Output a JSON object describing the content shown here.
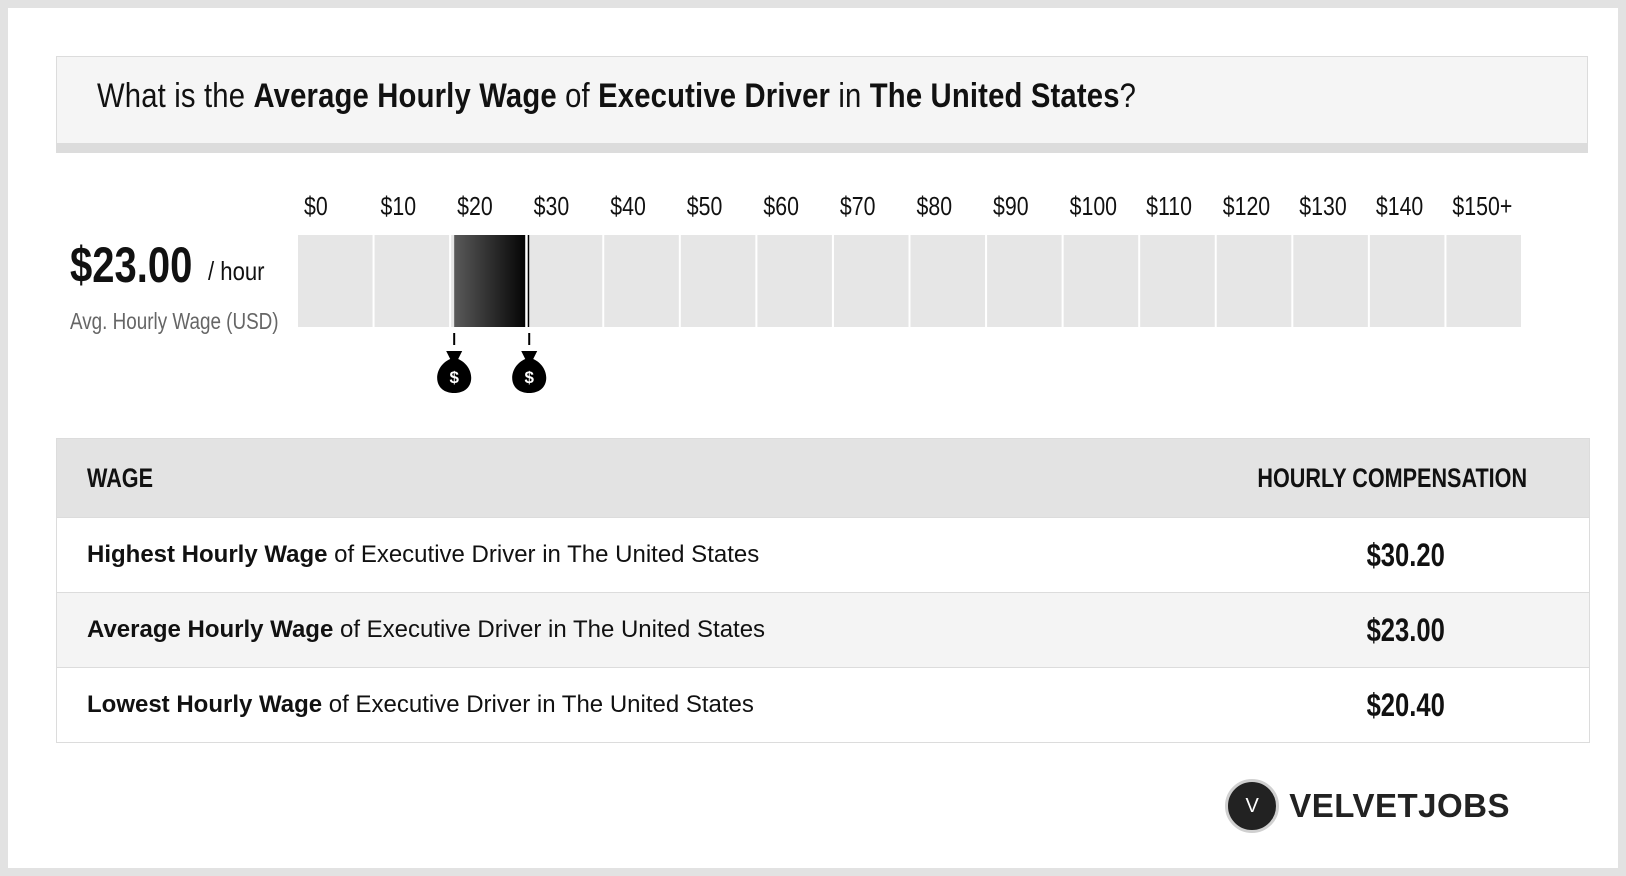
{
  "header": {
    "parts": [
      {
        "text": "What is the ",
        "bold": false
      },
      {
        "text": "Average Hourly Wage",
        "bold": true
      },
      {
        "text": " of ",
        "bold": false
      },
      {
        "text": "Executive Driver",
        "bold": true
      },
      {
        "text": " in ",
        "bold": false
      },
      {
        "text": "The United States",
        "bold": true
      },
      {
        "text": "?",
        "bold": false
      }
    ]
  },
  "summary": {
    "value": "$23.00",
    "unit": "/ hour",
    "label": "Avg. Hourly Wage (USD)"
  },
  "chart_data": {
    "type": "bar",
    "orientation": "horizontal-range",
    "tick_labels": [
      "$0",
      "$10",
      "$20",
      "$30",
      "$40",
      "$50",
      "$60",
      "$70",
      "$80",
      "$90",
      "$100",
      "$110",
      "$120",
      "$130",
      "$140",
      "$150+"
    ],
    "xlim": [
      0,
      150
    ],
    "range": {
      "low": 20.4,
      "high": 30.2
    },
    "average": 23.0,
    "markers": [
      20.4,
      30.2
    ],
    "marker_label": "$"
  },
  "table": {
    "headers": {
      "wage": "WAGE",
      "comp": "HOURLY COMPENSATION"
    },
    "rows": [
      {
        "bold": "Highest Hourly Wage",
        "rest": " of Executive Driver in The United States",
        "value": "$30.20"
      },
      {
        "bold": "Average Hourly Wage",
        "rest": " of Executive Driver in The United States",
        "value": "$23.00"
      },
      {
        "bold": "Lowest Hourly Wage",
        "rest": " of Executive Driver in The United States",
        "value": "$20.40"
      }
    ]
  },
  "logo": {
    "icon": "velvetjobs-logo-icon",
    "letter": "V",
    "text": "VELVETJOBS"
  }
}
